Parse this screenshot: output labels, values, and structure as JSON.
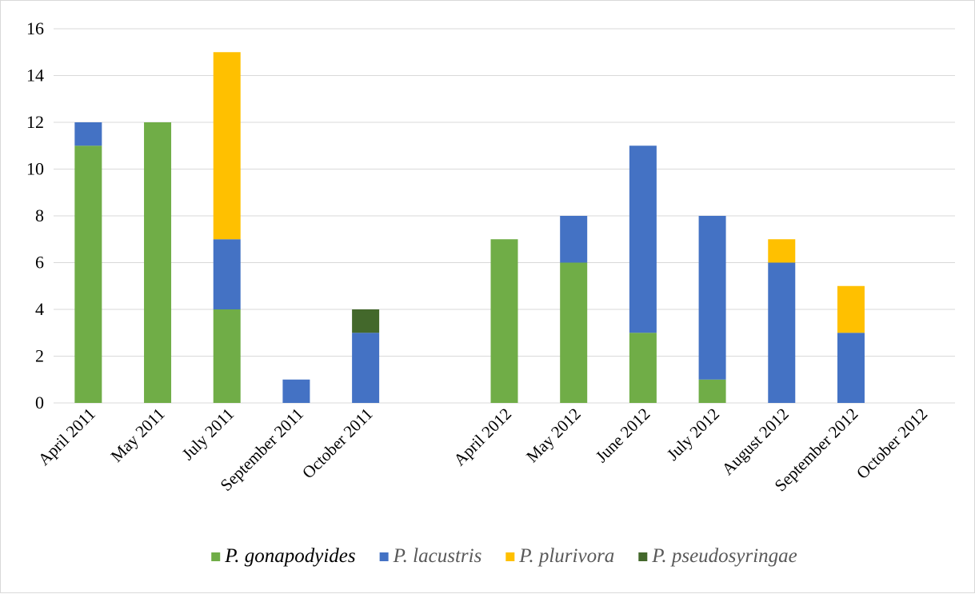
{
  "chart_data": {
    "type": "bar",
    "stacked": true,
    "title": "",
    "xlabel": "",
    "ylabel": "",
    "ylim": [
      0,
      16
    ],
    "yticks": [
      0,
      2,
      4,
      6,
      8,
      10,
      12,
      14,
      16
    ],
    "grid": true,
    "legend_position": "bottom",
    "categories": [
      "April 2011",
      "May 2011",
      "July 2011",
      "September 2011",
      "October 2011",
      "",
      "April 2012",
      "May 2012",
      "June 2012",
      "July 2012",
      "August 2012",
      "September 2012",
      "October 2012"
    ],
    "series": [
      {
        "name": "P. gonapodyides",
        "color": "#70ad47",
        "legend_text_color": "#000000",
        "values": [
          11,
          12,
          4,
          0,
          0,
          0,
          7,
          6,
          3,
          1,
          0,
          0,
          0
        ]
      },
      {
        "name": "P. lacustris",
        "color": "#4472c4",
        "legend_text_color": "#595959",
        "values": [
          1,
          0,
          3,
          1,
          3,
          0,
          0,
          2,
          8,
          7,
          6,
          3,
          0
        ]
      },
      {
        "name": "P. plurivora",
        "color": "#ffc000",
        "legend_text_color": "#595959",
        "values": [
          0,
          0,
          8,
          0,
          0,
          0,
          0,
          0,
          0,
          0,
          1,
          2,
          0
        ]
      },
      {
        "name": "P. pseudosyringae",
        "color": "#43682b",
        "legend_text_color": "#595959",
        "values": [
          0,
          0,
          0,
          0,
          1,
          0,
          0,
          0,
          0,
          0,
          0,
          0,
          0
        ]
      }
    ]
  }
}
